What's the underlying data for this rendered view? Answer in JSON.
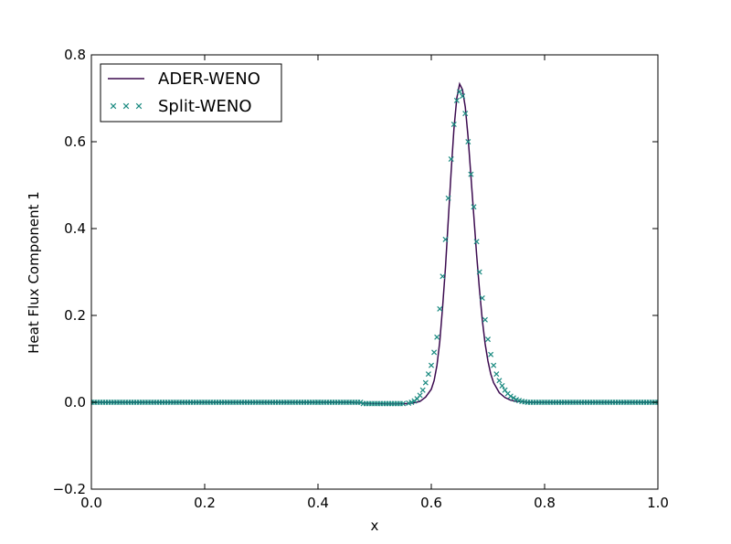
{
  "chart_data": {
    "type": "line",
    "xlabel": "x",
    "ylabel": "Heat Flux Component 1",
    "xlim": [
      0.0,
      1.0
    ],
    "ylim": [
      -0.2,
      0.8
    ],
    "xticks": [
      "0.0",
      "0.2",
      "0.4",
      "0.6",
      "0.8",
      "1.0"
    ],
    "yticks": [
      "−0.2",
      "0.0",
      "0.2",
      "0.4",
      "0.6",
      "0.8"
    ],
    "xtick_values": [
      0.0,
      0.2,
      0.4,
      0.6,
      0.8,
      1.0
    ],
    "ytick_values": [
      -0.2,
      0.0,
      0.2,
      0.4,
      0.6,
      0.8
    ],
    "grid": false,
    "legend_position": "top-left",
    "series": [
      {
        "name": "ADER-WENO",
        "style": "line",
        "color": "#3b0a4f",
        "points": [
          [
            0.0,
            0.0
          ],
          [
            0.05,
            0.0
          ],
          [
            0.1,
            0.0
          ],
          [
            0.15,
            0.0
          ],
          [
            0.2,
            0.0
          ],
          [
            0.25,
            0.0
          ],
          [
            0.3,
            0.0
          ],
          [
            0.35,
            0.0
          ],
          [
            0.4,
            0.0
          ],
          [
            0.45,
            0.0
          ],
          [
            0.5,
            -0.003
          ],
          [
            0.52,
            -0.004
          ],
          [
            0.54,
            -0.004
          ],
          [
            0.56,
            -0.003
          ],
          [
            0.57,
            -0.001
          ],
          [
            0.58,
            0.002
          ],
          [
            0.59,
            0.012
          ],
          [
            0.6,
            0.03
          ],
          [
            0.605,
            0.05
          ],
          [
            0.61,
            0.085
          ],
          [
            0.615,
            0.14
          ],
          [
            0.62,
            0.22
          ],
          [
            0.625,
            0.31
          ],
          [
            0.63,
            0.42
          ],
          [
            0.635,
            0.53
          ],
          [
            0.64,
            0.63
          ],
          [
            0.645,
            0.7
          ],
          [
            0.65,
            0.733
          ],
          [
            0.655,
            0.72
          ],
          [
            0.66,
            0.68
          ],
          [
            0.665,
            0.61
          ],
          [
            0.67,
            0.52
          ],
          [
            0.675,
            0.43
          ],
          [
            0.68,
            0.34
          ],
          [
            0.685,
            0.26
          ],
          [
            0.69,
            0.19
          ],
          [
            0.695,
            0.135
          ],
          [
            0.7,
            0.095
          ],
          [
            0.705,
            0.065
          ],
          [
            0.71,
            0.045
          ],
          [
            0.72,
            0.022
          ],
          [
            0.73,
            0.011
          ],
          [
            0.74,
            0.005
          ],
          [
            0.75,
            0.002
          ],
          [
            0.77,
            0.0
          ],
          [
            0.8,
            0.0
          ],
          [
            0.85,
            0.0
          ],
          [
            0.9,
            0.0
          ],
          [
            0.95,
            0.0
          ],
          [
            1.0,
            0.0
          ]
        ]
      },
      {
        "name": "Split-WENO",
        "style": "x-marker",
        "color": "#1a8a80",
        "points": [
          [
            0.4,
            0.0
          ],
          [
            0.55,
            -0.003
          ],
          [
            0.56,
            -0.002
          ],
          [
            0.565,
            0.0
          ],
          [
            0.57,
            0.003
          ],
          [
            0.575,
            0.008
          ],
          [
            0.58,
            0.016
          ],
          [
            0.585,
            0.028
          ],
          [
            0.59,
            0.045
          ],
          [
            0.595,
            0.065
          ],
          [
            0.6,
            0.085
          ],
          [
            0.605,
            0.115
          ],
          [
            0.61,
            0.15
          ],
          [
            0.615,
            0.215
          ],
          [
            0.62,
            0.29
          ],
          [
            0.625,
            0.375
          ],
          [
            0.63,
            0.47
          ],
          [
            0.635,
            0.56
          ],
          [
            0.64,
            0.64
          ],
          [
            0.645,
            0.695
          ],
          [
            0.65,
            0.715
          ],
          [
            0.655,
            0.705
          ],
          [
            0.66,
            0.665
          ],
          [
            0.665,
            0.6
          ],
          [
            0.67,
            0.525
          ],
          [
            0.675,
            0.45
          ],
          [
            0.68,
            0.37
          ],
          [
            0.685,
            0.3
          ],
          [
            0.69,
            0.24
          ],
          [
            0.695,
            0.19
          ],
          [
            0.7,
            0.145
          ],
          [
            0.705,
            0.11
          ],
          [
            0.71,
            0.085
          ],
          [
            0.715,
            0.065
          ],
          [
            0.72,
            0.05
          ],
          [
            0.725,
            0.038
          ],
          [
            0.73,
            0.028
          ],
          [
            0.735,
            0.02
          ],
          [
            0.74,
            0.014
          ],
          [
            0.745,
            0.01
          ],
          [
            0.75,
            0.006
          ],
          [
            0.755,
            0.004
          ],
          [
            0.76,
            0.002
          ],
          [
            0.765,
            0.001
          ]
        ]
      }
    ]
  }
}
